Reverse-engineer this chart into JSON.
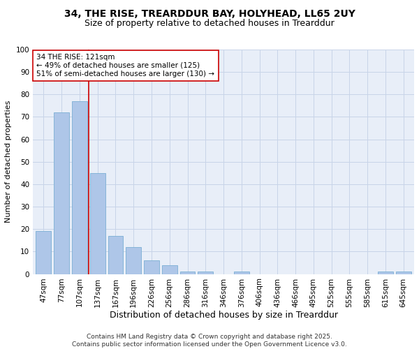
{
  "title1": "34, THE RISE, TREARDDUR BAY, HOLYHEAD, LL65 2UY",
  "title2": "Size of property relative to detached houses in Trearddur",
  "xlabel": "Distribution of detached houses by size in Trearddur",
  "ylabel": "Number of detached properties",
  "categories": [
    "47sqm",
    "77sqm",
    "107sqm",
    "137sqm",
    "167sqm",
    "196sqm",
    "226sqm",
    "256sqm",
    "286sqm",
    "316sqm",
    "346sqm",
    "376sqm",
    "406sqm",
    "436sqm",
    "466sqm",
    "495sqm",
    "525sqm",
    "555sqm",
    "585sqm",
    "615sqm",
    "645sqm"
  ],
  "values": [
    19,
    72,
    77,
    45,
    17,
    12,
    6,
    4,
    1,
    1,
    0,
    1,
    0,
    0,
    0,
    0,
    0,
    0,
    0,
    1,
    1
  ],
  "bar_color": "#aec6e8",
  "bar_edge_color": "#7aafd4",
  "vline_x": 2.5,
  "vline_color": "#cc0000",
  "annotation_text": "34 THE RISE: 121sqm\n← 49% of detached houses are smaller (125)\n51% of semi-detached houses are larger (130) →",
  "annotation_box_color": "#ffffff",
  "annotation_box_edge_color": "#cc0000",
  "ylim": [
    0,
    100
  ],
  "yticks": [
    0,
    10,
    20,
    30,
    40,
    50,
    60,
    70,
    80,
    90,
    100
  ],
  "grid_color": "#c8d4e8",
  "bg_color": "#e8eef8",
  "footer": "Contains HM Land Registry data © Crown copyright and database right 2025.\nContains public sector information licensed under the Open Government Licence v3.0.",
  "title1_fontsize": 10,
  "title2_fontsize": 9,
  "xlabel_fontsize": 9,
  "ylabel_fontsize": 8,
  "tick_fontsize": 7.5,
  "annotation_fontsize": 7.5,
  "footer_fontsize": 6.5
}
